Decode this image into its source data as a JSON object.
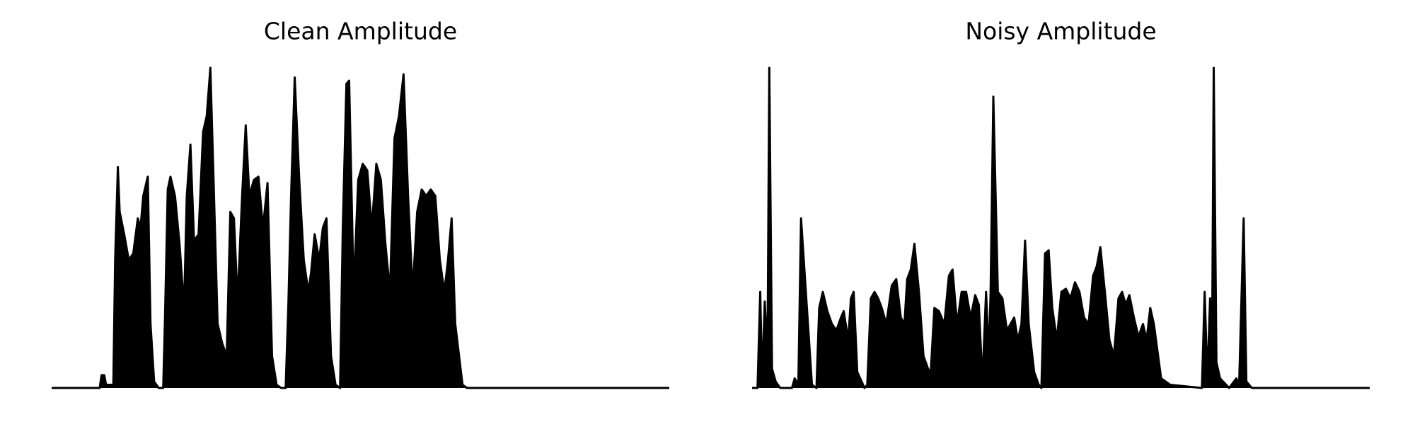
{
  "chart_data": [
    {
      "type": "area",
      "title": "Clean Amplitude",
      "color": "#000000",
      "xlim": [
        0,
        681
      ],
      "ylim": [
        0,
        1
      ],
      "x": [
        0,
        53,
        55,
        58,
        60,
        68,
        70,
        73,
        75,
        80,
        85,
        90,
        95,
        98,
        101,
        106,
        109,
        113,
        118,
        123,
        125,
        128,
        131,
        136,
        141,
        146,
        149,
        153,
        157,
        162,
        167,
        171,
        175,
        179,
        183,
        188,
        193,
        197,
        201,
        205,
        210,
        214,
        218,
        223,
        228,
        233,
        238,
        243,
        248,
        253,
        258,
        261,
        264,
        268,
        273,
        278,
        283,
        286,
        290,
        295,
        299,
        303,
        308,
        313,
        318,
        321,
        325,
        328,
        333,
        338,
        343,
        348,
        353,
        358,
        363,
        368,
        373,
        378,
        383,
        388,
        393,
        398,
        403,
        408,
        413,
        418,
        423,
        428,
        433,
        437,
        441,
        445,
        453,
        458,
        681
      ],
      "values": [
        0,
        0,
        0.04,
        0.04,
        0.01,
        0.01,
        0.4,
        0.69,
        0.55,
        0.48,
        0.4,
        0.42,
        0.53,
        0.5,
        0.6,
        0.66,
        0.2,
        0.02,
        0,
        0,
        0.22,
        0.62,
        0.66,
        0.6,
        0.45,
        0.25,
        0.6,
        0.76,
        0.46,
        0.48,
        0.8,
        0.85,
        1.0,
        0.6,
        0.2,
        0.14,
        0.1,
        0.55,
        0.53,
        0.27,
        0.6,
        0.82,
        0.6,
        0.65,
        0.66,
        0.5,
        0.64,
        0.1,
        0.01,
        0,
        0,
        0.26,
        0.6,
        0.97,
        0.65,
        0.4,
        0.3,
        0.36,
        0.48,
        0.4,
        0.5,
        0.53,
        0.1,
        0.01,
        0,
        0.5,
        0.95,
        0.96,
        0.3,
        0.65,
        0.7,
        0.68,
        0.5,
        0.7,
        0.65,
        0.45,
        0.3,
        0.78,
        0.85,
        0.98,
        0.6,
        0.3,
        0.55,
        0.62,
        0.6,
        0.62,
        0.6,
        0.4,
        0.3,
        0.4,
        0.53,
        0.2,
        0.01,
        0,
        0
      ]
    },
    {
      "type": "area",
      "title": "Noisy Amplitude",
      "color": "#000000",
      "xlim": [
        0,
        681
      ],
      "ylim": [
        0,
        1
      ],
      "x": [
        0,
        6,
        9,
        11,
        14,
        17,
        19,
        22,
        26,
        31,
        44,
        47,
        51,
        54,
        66,
        71,
        74,
        78,
        83,
        88,
        93,
        98,
        101,
        106,
        109,
        112,
        116,
        124,
        127,
        131,
        135,
        139,
        143,
        148,
        154,
        159,
        164,
        168,
        171,
        175,
        179,
        184,
        189,
        194,
        197,
        201,
        206,
        212,
        217,
        221,
        226,
        231,
        236,
        241,
        246,
        250,
        254,
        258,
        261,
        263,
        266,
        271,
        276,
        281,
        285,
        289,
        293,
        297,
        301,
        305,
        311,
        316,
        319,
        323,
        327,
        331,
        336,
        341,
        346,
        351,
        356,
        361,
        366,
        371,
        376,
        380,
        384,
        389,
        394,
        399,
        404,
        408,
        412,
        416,
        421,
        426,
        431,
        435,
        439,
        443,
        451,
        461,
        496,
        499,
        502,
        505,
        507,
        509,
        512,
        516,
        526,
        534,
        537,
        542,
        545,
        551,
        681
      ],
      "values": [
        0,
        0,
        0.3,
        0.02,
        0.27,
        0.1,
        1.0,
        0.06,
        0.02,
        0,
        0,
        0.03,
        0.01,
        0.53,
        0.01,
        0,
        0.25,
        0.3,
        0.24,
        0.2,
        0.18,
        0.22,
        0.24,
        0.15,
        0.28,
        0.3,
        0.05,
        0,
        0.01,
        0.28,
        0.3,
        0.28,
        0.25,
        0.2,
        0.32,
        0.34,
        0.22,
        0.2,
        0.34,
        0.37,
        0.45,
        0.3,
        0.1,
        0.06,
        0.05,
        0.25,
        0.24,
        0.2,
        0.35,
        0.37,
        0.2,
        0.3,
        0.3,
        0.22,
        0.29,
        0.26,
        0.02,
        0.3,
        0.1,
        0.3,
        0.91,
        0.3,
        0.28,
        0.18,
        0.2,
        0.22,
        0.15,
        0.2,
        0.46,
        0.2,
        0.05,
        0.01,
        0,
        0.42,
        0.43,
        0.25,
        0.15,
        0.3,
        0.31,
        0.28,
        0.33,
        0.3,
        0.22,
        0.2,
        0.35,
        0.38,
        0.44,
        0.3,
        0.15,
        0.1,
        0.28,
        0.3,
        0.26,
        0.29,
        0.22,
        0.16,
        0.2,
        0.15,
        0.25,
        0.2,
        0.03,
        0.01,
        0,
        0.3,
        0.02,
        0.28,
        0.04,
        1.0,
        0.08,
        0.03,
        0,
        0.03,
        0.01,
        0.53,
        0.02,
        0,
        0
      ]
    }
  ]
}
